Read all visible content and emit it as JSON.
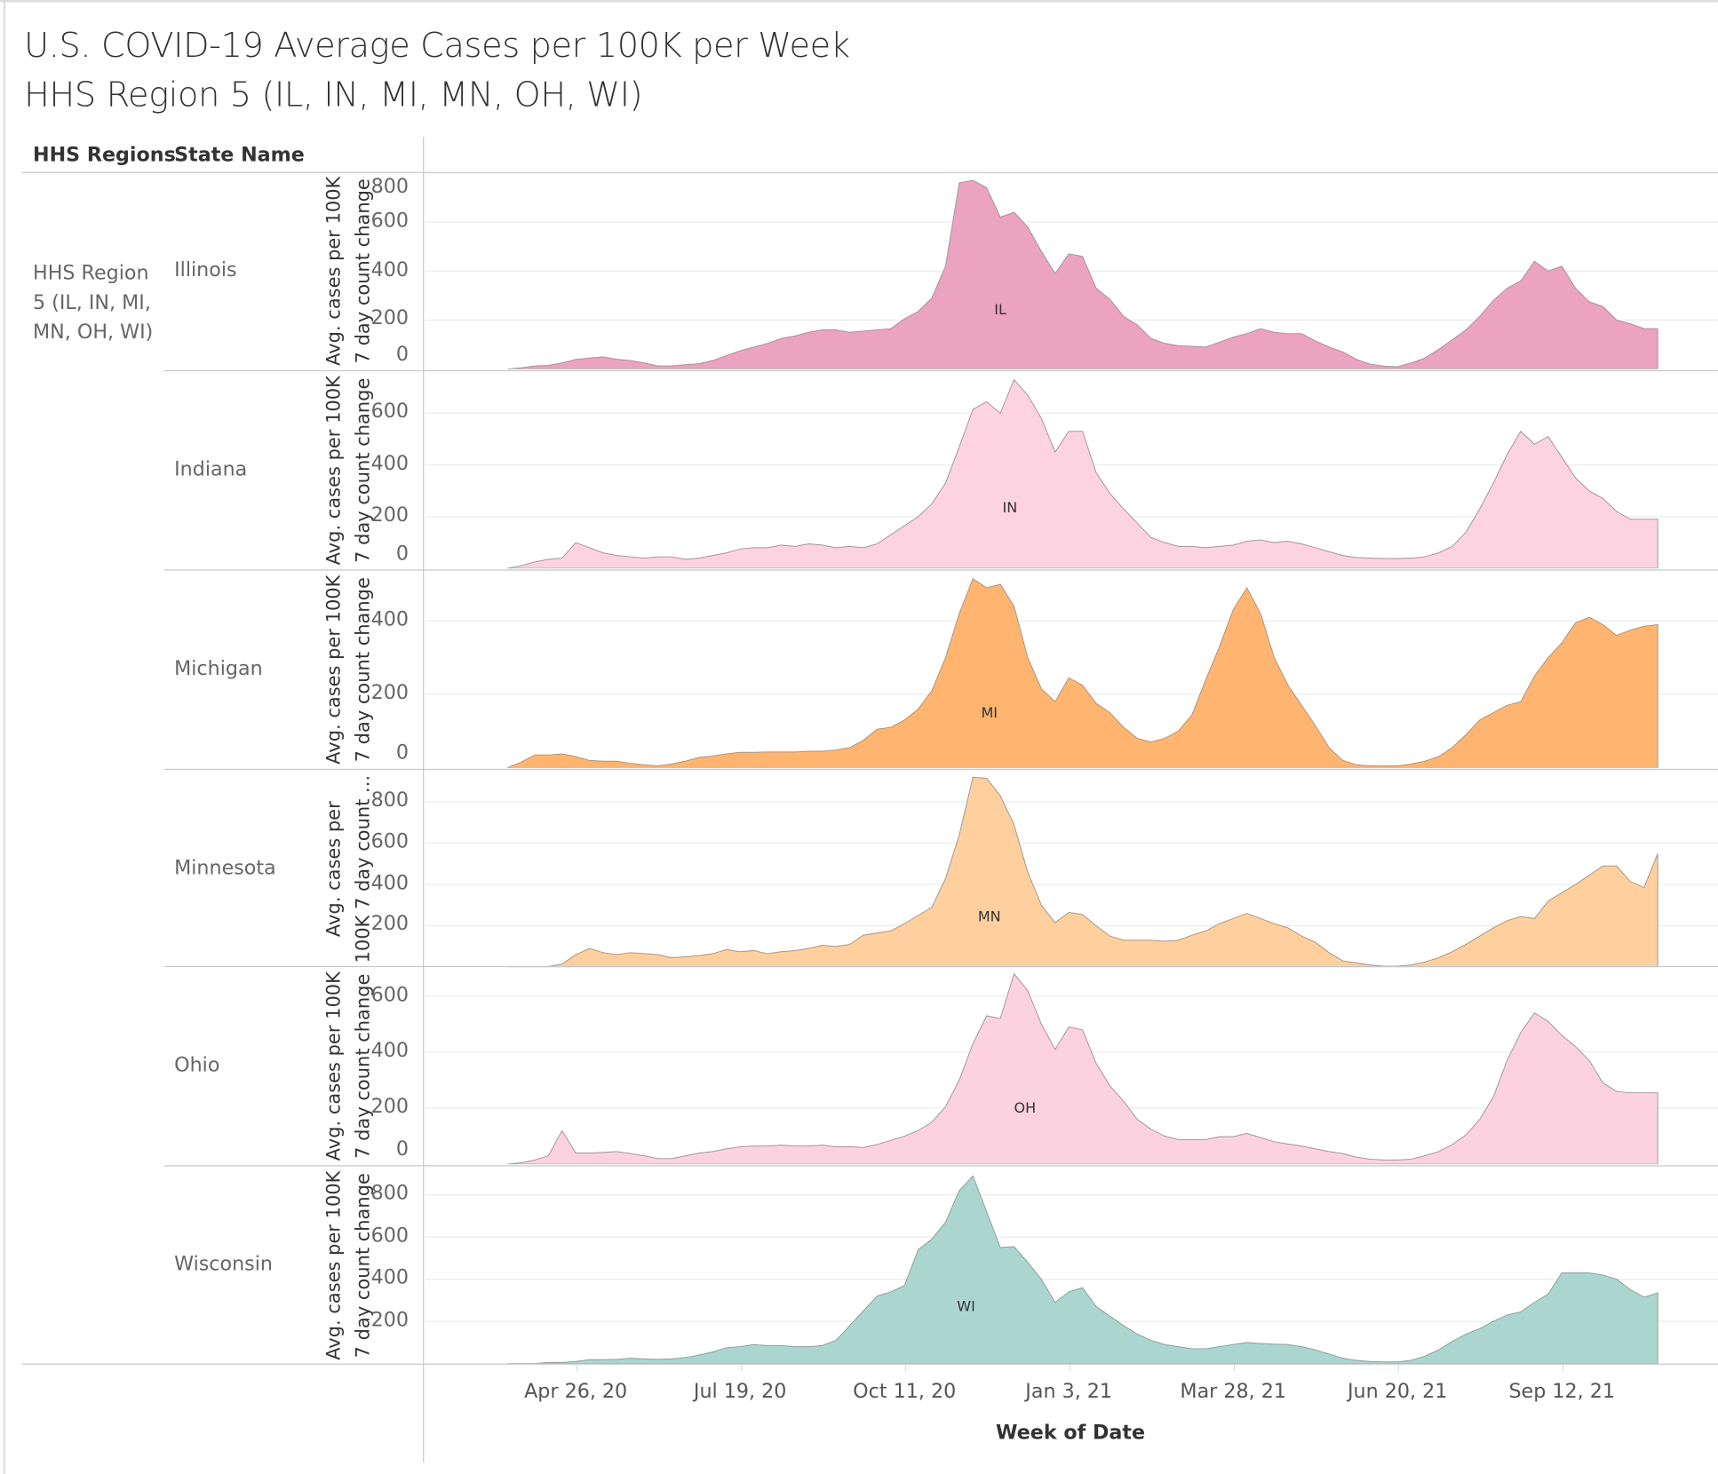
{
  "chart_data": {
    "type": "area",
    "title": "U.S. COVID-19 Average Cases per 100K  per Week",
    "subtitle": "HHS Region 5 (IL, IN, MI, MN, OH, WI)",
    "row_headers": [
      "HHS Regions",
      "State Name"
    ],
    "region": "HHS Region 5 (IL, IN, MI, MN, OH, WI)",
    "xlabel": "Week of Date",
    "ylabel_line1": "Avg. cases per 100K",
    "ylabel_line2": "7 day count change",
    "ylabel_mn_line1": "Avg. cases per",
    "ylabel_mn_line2": "100K 7 day count ...",
    "x_unit": "week index (0 = week of Mar 22, 2020)",
    "x_ticks": [
      {
        "label": "Apr 26, 20",
        "week": 5
      },
      {
        "label": "Jul 19, 20",
        "week": 17
      },
      {
        "label": "Oct 11, 20",
        "week": 29
      },
      {
        "label": "Jan 3, 21",
        "week": 41
      },
      {
        "label": "Mar 28, 21",
        "week": 53
      },
      {
        "label": "Jun 20, 21",
        "week": 65
      },
      {
        "label": "Sep 12, 21",
        "week": 77
      }
    ],
    "grid": true,
    "series": [
      {
        "name": "Illinois",
        "abbr": "IL",
        "color": "#eba3bf",
        "ylim": [
          0,
          800
        ],
        "yticks": [
          0,
          200,
          400,
          600,
          800
        ],
        "values": [
          0,
          5,
          13,
          15,
          25,
          40,
          45,
          50,
          40,
          35,
          25,
          13,
          13,
          18,
          22,
          35,
          55,
          75,
          90,
          105,
          125,
          135,
          150,
          160,
          160,
          150,
          155,
          160,
          165,
          205,
          235,
          290,
          420,
          760,
          770,
          740,
          620,
          640,
          580,
          480,
          390,
          470,
          460,
          330,
          285,
          215,
          180,
          125,
          105,
          95,
          93,
          90,
          110,
          130,
          145,
          165,
          150,
          145,
          145,
          115,
          90,
          70,
          40,
          20,
          12,
          10,
          25,
          45,
          80,
          120,
          160,
          215,
          280,
          330,
          360,
          440,
          400,
          420,
          330,
          275,
          255,
          200,
          185,
          165,
          165
        ]
      },
      {
        "name": "Indiana",
        "abbr": "IN",
        "color": "#fdd2e1",
        "ylim": [
          0,
          758
        ],
        "yticks": [
          0,
          200,
          400,
          600
        ],
        "values": [
          0,
          10,
          25,
          35,
          40,
          100,
          80,
          60,
          50,
          45,
          40,
          45,
          45,
          35,
          40,
          50,
          60,
          75,
          80,
          80,
          90,
          85,
          95,
          90,
          80,
          85,
          80,
          95,
          130,
          165,
          200,
          250,
          330,
          470,
          615,
          645,
          600,
          730,
          670,
          580,
          450,
          530,
          530,
          370,
          290,
          230,
          175,
          120,
          100,
          85,
          85,
          80,
          85,
          90,
          105,
          110,
          100,
          105,
          95,
          80,
          65,
          50,
          42,
          40,
          38,
          38,
          40,
          45,
          60,
          85,
          140,
          230,
          330,
          440,
          530,
          480,
          510,
          430,
          350,
          300,
          270,
          220,
          190,
          190,
          190
        ]
      },
      {
        "name": "Michigan",
        "abbr": "MI",
        "color": "#ffb470",
        "ylim": [
          0,
          534
        ],
        "yticks": [
          0,
          200,
          400
        ],
        "values": [
          0,
          15,
          35,
          35,
          38,
          30,
          20,
          18,
          18,
          12,
          8,
          5,
          10,
          18,
          28,
          32,
          38,
          42,
          42,
          43,
          43,
          43,
          45,
          45,
          48,
          55,
          75,
          105,
          110,
          130,
          160,
          210,
          300,
          420,
          515,
          490,
          500,
          440,
          300,
          215,
          180,
          245,
          225,
          175,
          150,
          110,
          80,
          70,
          80,
          100,
          145,
          240,
          330,
          430,
          490,
          420,
          300,
          225,
          170,
          115,
          55,
          20,
          8,
          5,
          5,
          5,
          10,
          18,
          30,
          55,
          90,
          130,
          150,
          170,
          180,
          250,
          300,
          340,
          395,
          410,
          390,
          360,
          375,
          385,
          390
        ]
      },
      {
        "name": "Minnesota",
        "abbr": "MN",
        "color": "#ffd09e",
        "ylim": [
          0,
          950
        ],
        "yticks": [
          200,
          400,
          600,
          800
        ],
        "values": [
          0,
          0,
          0,
          3,
          15,
          60,
          90,
          70,
          60,
          70,
          65,
          60,
          45,
          50,
          55,
          65,
          85,
          75,
          80,
          65,
          75,
          80,
          90,
          105,
          100,
          110,
          155,
          165,
          175,
          210,
          250,
          290,
          430,
          640,
          920,
          915,
          830,
          690,
          460,
          300,
          215,
          265,
          255,
          200,
          150,
          130,
          130,
          130,
          125,
          130,
          155,
          175,
          210,
          235,
          260,
          235,
          210,
          190,
          150,
          120,
          70,
          30,
          20,
          10,
          5,
          5,
          10,
          25,
          45,
          75,
          110,
          150,
          190,
          225,
          245,
          235,
          320,
          360,
          400,
          445,
          490,
          490,
          415,
          385,
          550
        ]
      },
      {
        "name": "Ohio",
        "abbr": "OH",
        "color": "#fdd2e0",
        "ylim": [
          0,
          700
        ],
        "yticks": [
          0,
          200,
          400,
          600
        ],
        "values": [
          0,
          5,
          15,
          30,
          120,
          40,
          40,
          42,
          45,
          38,
          30,
          20,
          20,
          30,
          40,
          45,
          55,
          62,
          65,
          65,
          68,
          65,
          65,
          68,
          62,
          62,
          60,
          70,
          85,
          100,
          120,
          150,
          205,
          300,
          430,
          530,
          520,
          680,
          620,
          500,
          410,
          490,
          480,
          360,
          280,
          225,
          160,
          125,
          100,
          88,
          88,
          88,
          98,
          98,
          110,
          95,
          80,
          72,
          65,
          55,
          45,
          38,
          25,
          18,
          15,
          15,
          18,
          30,
          45,
          70,
          105,
          160,
          240,
          370,
          470,
          540,
          510,
          460,
          420,
          370,
          290,
          260,
          255,
          255,
          255
        ]
      },
      {
        "name": "Wisconsin",
        "abbr": "WI",
        "color": "#abd6d0",
        "ylim": [
          0,
          930
        ],
        "yticks": [
          200,
          400,
          600,
          800
        ],
        "values": [
          0,
          0,
          0,
          5,
          5,
          10,
          18,
          18,
          20,
          25,
          22,
          20,
          22,
          28,
          40,
          55,
          75,
          80,
          90,
          85,
          85,
          80,
          80,
          85,
          110,
          180,
          250,
          320,
          340,
          370,
          540,
          590,
          670,
          820,
          890,
          720,
          550,
          555,
          480,
          400,
          290,
          340,
          360,
          270,
          225,
          180,
          140,
          110,
          90,
          80,
          70,
          70,
          80,
          90,
          100,
          95,
          92,
          90,
          80,
          65,
          45,
          25,
          15,
          10,
          8,
          8,
          15,
          35,
          65,
          105,
          140,
          165,
          200,
          230,
          245,
          290,
          330,
          430,
          430,
          430,
          420,
          400,
          350,
          315,
          335
        ]
      }
    ]
  }
}
